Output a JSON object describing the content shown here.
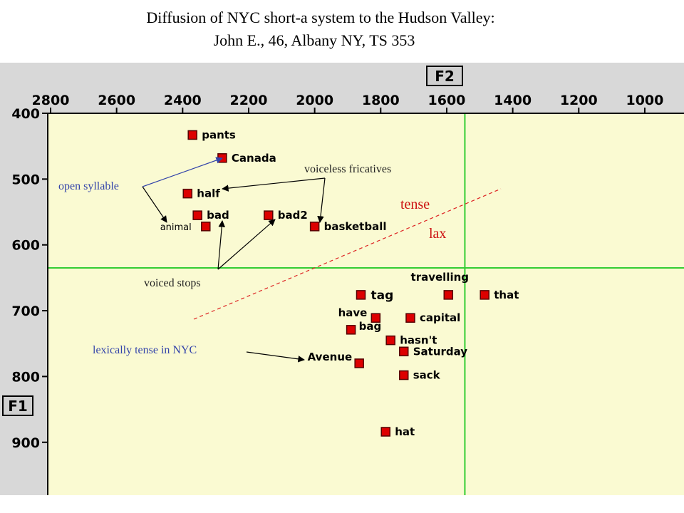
{
  "title_line1": "Diffusion of NYC short-a system to the Hudson Valley:",
  "title_line2": "John E., 46, Albany NY, TS 353",
  "colors": {
    "plot_bg": "#fafad2",
    "frame": "#d8d8d8",
    "marker": "#dd0000",
    "grid_green": "#33cc33",
    "blue_text": "#3344aa",
    "red_text": "#cc1111",
    "dashed": "#dd2222"
  },
  "chart_data": {
    "type": "scatter",
    "x_axis_label": "F2",
    "y_axis_label": "F1",
    "x_reversed": true,
    "y_reversed": true,
    "xlim": [
      2850,
      950
    ],
    "ylim": [
      400,
      1000
    ],
    "x_ticks": [
      "2800",
      "2600",
      "2400",
      "2200",
      "2000",
      "1800",
      "1600",
      "1400",
      "1200",
      "1000"
    ],
    "y_ticks": [
      "400",
      "500",
      "600",
      "700",
      "800",
      "900"
    ],
    "reference_lines": {
      "f2": 1545,
      "f1": 635
    },
    "points": [
      {
        "word": "pants",
        "f2": 2370,
        "f1": 433
      },
      {
        "word": "Canada",
        "f2": 2280,
        "f1": 468
      },
      {
        "word": "half",
        "f2": 2385,
        "f1": 522
      },
      {
        "word": "bad",
        "f2": 2355,
        "f1": 555
      },
      {
        "word": "bad2",
        "f2": 2140,
        "f1": 555
      },
      {
        "word": "animal",
        "f2": 2330,
        "f1": 572
      },
      {
        "word": "basketball",
        "f2": 2000,
        "f1": 572
      },
      {
        "word": "tag",
        "f2": 1860,
        "f1": 676
      },
      {
        "word": "travelling",
        "f2": 1595,
        "f1": 676
      },
      {
        "word": "that",
        "f2": 1485,
        "f1": 676
      },
      {
        "word": "have",
        "f2": 1815,
        "f1": 711
      },
      {
        "word": "capital",
        "f2": 1710,
        "f1": 711
      },
      {
        "word": "bag",
        "f2": 1890,
        "f1": 729
      },
      {
        "word": "hasn't",
        "f2": 1770,
        "f1": 745
      },
      {
        "word": "Saturday",
        "f2": 1730,
        "f1": 762
      },
      {
        "word": "Avenue",
        "f2": 1865,
        "f1": 780
      },
      {
        "word": "sack",
        "f2": 1730,
        "f1": 798
      },
      {
        "word": "hat",
        "f2": 1785,
        "f1": 884
      }
    ]
  },
  "annotations": {
    "open_syllable": "open syllable",
    "voiceless_fricatives": "voiceless fricatives",
    "voiced_stops": "voiced stops",
    "lexically_tense": "lexically tense in NYC",
    "tense": "tense",
    "lax": "lax"
  }
}
